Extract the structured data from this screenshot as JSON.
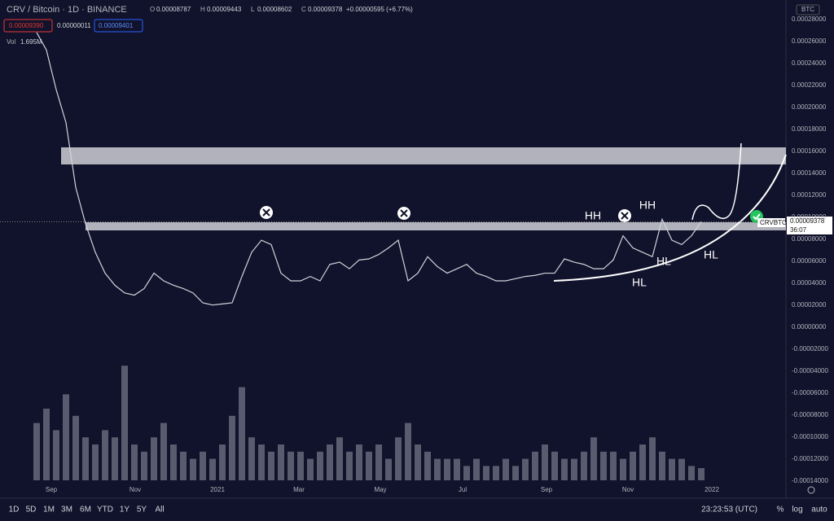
{
  "header": {
    "symbol": "CRV / Bitcoin · 1D · BINANCE",
    "ohlc": [
      {
        "label": "O",
        "value": "0.00008787"
      },
      {
        "label": "H",
        "value": "0.00009443"
      },
      {
        "label": "L",
        "value": "0.00008602"
      },
      {
        "label": "C",
        "value": "0.00009378"
      }
    ],
    "change": "+0.00000595 (+6.77%)",
    "sell": "0.00009390",
    "spread": "0.00000011",
    "buy": "0.00009401",
    "vol_label": "Vol",
    "vol_value": "1.695M"
  },
  "price_axis": {
    "currency": "BTC",
    "ticks": [
      "0.00028000",
      "0.00026000",
      "0.00024000",
      "0.00022000",
      "0.00020000",
      "0.00018000",
      "0.00016000",
      "0.00014000",
      "0.00012000",
      "0.00010000",
      "0.00008000",
      "0.00006000",
      "0.00004000",
      "0.00002000",
      "0.00000000",
      "-0.00002000",
      "-0.00004000",
      "-0.00006000",
      "-0.00008000",
      "-0.00010000",
      "-0.00012000",
      "-0.00014000"
    ],
    "symbol_tag": "CRVBTC",
    "last_price": "0.00009378",
    "countdown": "36:07"
  },
  "time_axis": [
    "Sep",
    "Nov",
    "2021",
    "Mar",
    "May",
    "Jul",
    "Sep",
    "Nov",
    "2022"
  ],
  "price_series": [
    0.000266,
    0.00025,
    0.000214,
    0.000184,
    0.000125,
    9.2e-05,
    6.6e-05,
    4.7e-05,
    3.6e-05,
    2.9e-05,
    2.7e-05,
    3.3e-05,
    4.7e-05,
    4e-05,
    3.6e-05,
    3.3e-05,
    2.9e-05,
    2e-05,
    1.8e-05,
    1.9e-05,
    2e-05,
    4.4e-05,
    6.6e-05,
    7.7e-05,
    7.3e-05,
    4.7e-05,
    4e-05,
    4e-05,
    4.4e-05,
    4e-05,
    5.5e-05,
    5.7e-05,
    5.1e-05,
    5.9e-05,
    6e-05,
    6.4e-05,
    7e-05,
    7.7e-05,
    4e-05,
    4.7e-05,
    6.2e-05,
    5.3e-05,
    4.7e-05,
    5.1e-05,
    5.5e-05,
    4.7e-05,
    4.4e-05,
    4e-05,
    4e-05,
    4.2e-05,
    4.4e-05,
    4.5e-05,
    4.7e-05,
    4.7e-05,
    6e-05,
    5.7e-05,
    5.5e-05,
    5.1e-05,
    5.1e-05,
    5.9e-05,
    8.1e-05,
    7e-05,
    6.6e-05,
    6.2e-05,
    9.6e-05,
    7.7e-05,
    7.3e-05,
    8.1e-05,
    9.378e-05
  ],
  "volume_series": [
    8,
    10,
    7,
    12,
    9,
    6,
    5,
    7,
    6,
    16,
    5,
    4,
    6,
    8,
    5,
    4,
    3,
    4,
    3,
    5,
    9,
    13,
    6,
    5,
    4,
    5,
    4,
    4,
    3,
    4,
    5,
    6,
    4,
    5,
    4,
    5,
    3,
    6,
    8,
    5,
    4,
    3,
    3,
    3,
    2,
    3,
    2,
    2,
    3,
    2,
    3,
    4,
    5,
    4,
    3,
    3,
    4,
    6,
    4,
    4,
    3,
    4,
    5,
    6,
    4,
    3,
    3,
    2,
    1.7
  ],
  "annotations": [
    "HH",
    "HH",
    "HL",
    "HL",
    "HL"
  ],
  "bottom": {
    "timeframes": [
      "1D",
      "5D",
      "1M",
      "3M",
      "6M",
      "YTD",
      "1Y",
      "5Y",
      "All"
    ],
    "clock": "23:23:53 (UTC)",
    "percent": "%",
    "log": "log",
    "auto": "auto"
  }
}
